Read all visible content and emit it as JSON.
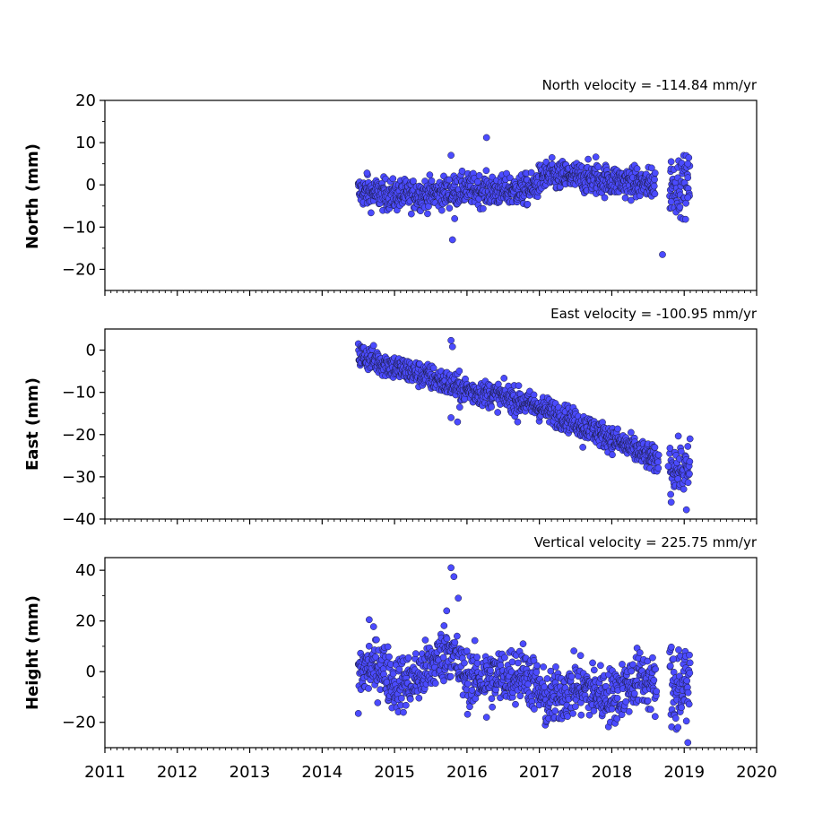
{
  "chart_data": [
    {
      "type": "scatter",
      "title": "North velocity = -114.84 mm/yr",
      "ylabel": "North (mm)",
      "xlabel": "",
      "xlim": [
        2011,
        2020
      ],
      "ylim": [
        -25,
        20
      ],
      "yticks": [
        20,
        10,
        0,
        -10,
        -20
      ],
      "ytick_labels": [
        "20",
        "10",
        "0",
        "−10",
        "−20"
      ],
      "xtick_labels_visible": false,
      "grid": false,
      "marker_color": "#4b4bff",
      "trend": [
        {
          "x": 2014.5,
          "y": -1.5
        },
        {
          "x": 2015.0,
          "y": -2.5
        },
        {
          "x": 2015.6,
          "y": -2.0
        },
        {
          "x": 2016.0,
          "y": -1.0
        },
        {
          "x": 2016.5,
          "y": -1.5
        },
        {
          "x": 2016.9,
          "y": -1.0
        },
        {
          "x": 2017.05,
          "y": 2.0
        },
        {
          "x": 2017.4,
          "y": 2.0
        },
        {
          "x": 2018.0,
          "y": 1.0
        },
        {
          "x": 2018.6,
          "y": 0.0
        }
      ],
      "spread": 1.8,
      "segments": [
        [
          2014.5,
          2018.6
        ],
        [
          2018.8,
          2019.08
        ]
      ],
      "outliers": [
        {
          "x": 2014.62,
          "y": 2.8
        },
        {
          "x": 2015.78,
          "y": 7.0
        },
        {
          "x": 2015.8,
          "y": -13.0
        },
        {
          "x": 2015.83,
          "y": -8.0
        },
        {
          "x": 2016.27,
          "y": 11.2
        },
        {
          "x": 2017.78,
          "y": 6.6
        },
        {
          "x": 2018.7,
          "y": -16.5
        },
        {
          "x": 2018.82,
          "y": 5.5
        },
        {
          "x": 2018.82,
          "y": -4.0
        },
        {
          "x": 2019.05,
          "y": 5.0
        },
        {
          "x": 2019.05,
          "y": -3.0
        },
        {
          "x": 2018.55,
          "y": 4.0
        }
      ]
    },
    {
      "type": "scatter",
      "title": "East velocity = -100.95 mm/yr",
      "ylabel": "East (mm)",
      "xlabel": "",
      "xlim": [
        2011,
        2020
      ],
      "ylim": [
        -40,
        5
      ],
      "yticks": [
        0,
        -10,
        -20,
        -30,
        -40
      ],
      "ytick_labels": [
        "0",
        "−10",
        "−20",
        "−30",
        "−40"
      ],
      "xtick_labels_visible": false,
      "grid": false,
      "marker_color": "#4b4bff",
      "trend": [
        {
          "x": 2014.5,
          "y": -1.0
        },
        {
          "x": 2015.0,
          "y": -4.0
        },
        {
          "x": 2015.5,
          "y": -6.5
        },
        {
          "x": 2016.0,
          "y": -9.5
        },
        {
          "x": 2016.5,
          "y": -11.0
        },
        {
          "x": 2017.0,
          "y": -13.5
        },
        {
          "x": 2017.5,
          "y": -17.0
        },
        {
          "x": 2018.0,
          "y": -21.0
        },
        {
          "x": 2018.6,
          "y": -26.0
        },
        {
          "x": 2019.08,
          "y": -29.0
        }
      ],
      "spread": 1.5,
      "segments": [
        [
          2014.5,
          2018.65
        ],
        [
          2018.8,
          2019.08
        ]
      ],
      "outliers": [
        {
          "x": 2015.78,
          "y": 2.3
        },
        {
          "x": 2015.8,
          "y": 0.8
        },
        {
          "x": 2015.78,
          "y": -16.0
        },
        {
          "x": 2015.87,
          "y": -17.0
        },
        {
          "x": 2015.9,
          "y": -13.5
        },
        {
          "x": 2016.7,
          "y": -17.0
        },
        {
          "x": 2017.6,
          "y": -23.0
        },
        {
          "x": 2018.82,
          "y": -36.0
        },
        {
          "x": 2019.03,
          "y": -37.8
        },
        {
          "x": 2019.08,
          "y": -21.0
        },
        {
          "x": 2018.78,
          "y": -27.5
        }
      ]
    },
    {
      "type": "scatter",
      "title": "Vertical velocity = 225.75 mm/yr",
      "ylabel": "Height (mm)",
      "xlabel": "",
      "xlim": [
        2011,
        2020
      ],
      "ylim": [
        -30,
        45
      ],
      "yticks": [
        40,
        20,
        0,
        -20
      ],
      "ytick_labels": [
        "40",
        "20",
        "0",
        "−20"
      ],
      "xticks": [
        2011,
        2012,
        2013,
        2014,
        2015,
        2016,
        2017,
        2018,
        2019,
        2020
      ],
      "xtick_labels": [
        "2011",
        "2012",
        "2013",
        "2014",
        "2015",
        "2016",
        "2017",
        "2018",
        "2019",
        "2020"
      ],
      "xtick_labels_visible": true,
      "grid": false,
      "marker_color": "#4b4bff",
      "trend": [
        {
          "x": 2014.5,
          "y": 0.0
        },
        {
          "x": 2014.8,
          "y": 3.0
        },
        {
          "x": 2015.0,
          "y": -5.0
        },
        {
          "x": 2015.3,
          "y": -3.0
        },
        {
          "x": 2015.75,
          "y": 9.0
        },
        {
          "x": 2016.0,
          "y": -3.0
        },
        {
          "x": 2016.5,
          "y": -2.0
        },
        {
          "x": 2016.8,
          "y": 0.0
        },
        {
          "x": 2017.1,
          "y": -12.0
        },
        {
          "x": 2017.5,
          "y": -6.0
        },
        {
          "x": 2018.0,
          "y": -10.0
        },
        {
          "x": 2018.4,
          "y": -2.0
        },
        {
          "x": 2018.6,
          "y": -6.0
        }
      ],
      "spread": 5.5,
      "segments": [
        [
          2014.5,
          2018.62
        ],
        [
          2018.8,
          2019.08
        ]
      ],
      "outliers": [
        {
          "x": 2015.78,
          "y": 41.0
        },
        {
          "x": 2015.82,
          "y": 37.5
        },
        {
          "x": 2015.88,
          "y": 29.0
        },
        {
          "x": 2015.72,
          "y": 24.0
        },
        {
          "x": 2014.65,
          "y": 20.5
        },
        {
          "x": 2014.5,
          "y": -16.5
        },
        {
          "x": 2016.27,
          "y": -18.0
        },
        {
          "x": 2019.05,
          "y": -28.0
        },
        {
          "x": 2019.03,
          "y": -19.5
        },
        {
          "x": 2018.85,
          "y": 5.0
        },
        {
          "x": 2019.08,
          "y": 3.5
        }
      ]
    }
  ]
}
